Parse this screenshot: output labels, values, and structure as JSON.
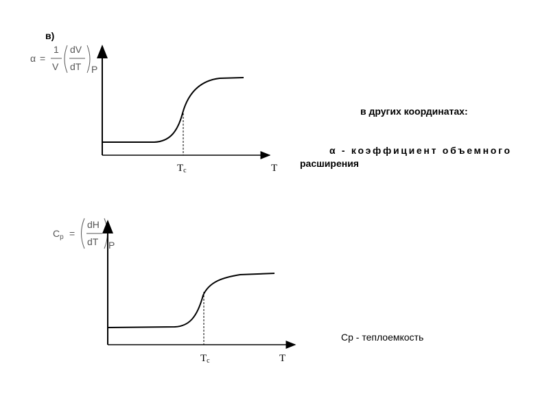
{
  "panels": [
    {
      "label": "в)",
      "formula": {
        "lhs": "α",
        "eq": "=",
        "num": "1",
        "den": "V",
        "dnum": "dV",
        "dden": "dT",
        "sub": "P"
      },
      "x_axis": "T",
      "marker": {
        "main": "T",
        "sub": "c"
      }
    },
    {
      "formula": {
        "lhs": "C",
        "lhs_sub": "p",
        "eq": "=",
        "dnum": "dH",
        "dden": "dT",
        "sub": "P"
      },
      "x_axis": "T",
      "marker": {
        "main": "T",
        "sub": "c"
      }
    }
  ],
  "notes": {
    "heading": "в других координатах:",
    "alpha_line1": "α  -  коэффициент  объемного",
    "alpha_line2": "расширения",
    "cp": "Cp - теплоемкость"
  }
}
